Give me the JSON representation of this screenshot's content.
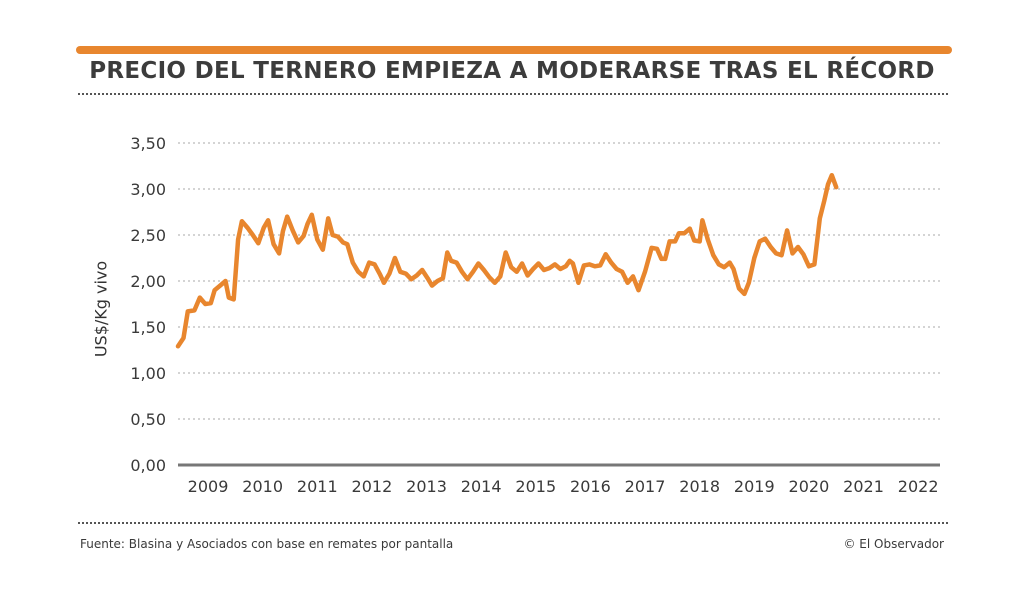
{
  "title": "PRECIO DEL TERNERO EMPIEZA A MODERARSE TRAS EL RÉCORD",
  "source": "Fuente: Blasina y Asociados con base en remates por pantalla",
  "credit": "© El Observador",
  "colors": {
    "accent": "#e8862e",
    "grid": "#bbbbbb",
    "axis": "#777777",
    "text": "#3a3a3a"
  },
  "chart_data": {
    "type": "line",
    "title": "PRECIO DEL TERNERO EMPIEZA A MODERARSE TRAS EL RÉCORD",
    "xlabel": "",
    "ylabel": "US$/Kg vivo",
    "ylim": [
      0,
      3.5
    ],
    "xlim": [
      2008.95,
      2022.9
    ],
    "grid": true,
    "yticks": [
      "0,00",
      "0,50",
      "1,00",
      "1,50",
      "2,00",
      "2,50",
      "3,00",
      "3,50"
    ],
    "ytick_values": [
      0,
      0.5,
      1.0,
      1.5,
      2.0,
      2.5,
      3.0,
      3.5
    ],
    "xticks": [
      "2009",
      "2010",
      "2011",
      "2012",
      "2013",
      "2014",
      "2015",
      "2016",
      "2017",
      "2018",
      "2019",
      "2020",
      "2021",
      "2022"
    ],
    "xtick_values": [
      2009.5,
      2010.5,
      2011.5,
      2012.5,
      2013.5,
      2014.5,
      2015.5,
      2016.5,
      2017.5,
      2018.5,
      2019.5,
      2020.5,
      2021.5,
      2022.5
    ],
    "series": [
      {
        "values": [
          [
            2008.95,
            1.29
          ],
          [
            2009.05,
            1.38
          ],
          [
            2009.13,
            1.67
          ],
          [
            2009.25,
            1.68
          ],
          [
            2009.35,
            1.82
          ],
          [
            2009.45,
            1.75
          ],
          [
            2009.55,
            1.76
          ],
          [
            2009.62,
            1.9
          ],
          [
            2009.72,
            1.95
          ],
          [
            2009.82,
            2.0
          ],
          [
            2009.88,
            1.82
          ],
          [
            2009.97,
            1.8
          ],
          [
            2010.05,
            2.45
          ],
          [
            2010.12,
            2.65
          ],
          [
            2010.22,
            2.58
          ],
          [
            2010.32,
            2.5
          ],
          [
            2010.42,
            2.41
          ],
          [
            2010.52,
            2.58
          ],
          [
            2010.6,
            2.66
          ],
          [
            2010.7,
            2.4
          ],
          [
            2010.8,
            2.3
          ],
          [
            2010.87,
            2.54
          ],
          [
            2010.95,
            2.7
          ],
          [
            2011.05,
            2.55
          ],
          [
            2011.15,
            2.42
          ],
          [
            2011.25,
            2.49
          ],
          [
            2011.32,
            2.62
          ],
          [
            2011.4,
            2.72
          ],
          [
            2011.5,
            2.45
          ],
          [
            2011.6,
            2.34
          ],
          [
            2011.7,
            2.68
          ],
          [
            2011.78,
            2.5
          ],
          [
            2011.88,
            2.48
          ],
          [
            2011.97,
            2.42
          ],
          [
            2012.05,
            2.4
          ],
          [
            2012.15,
            2.2
          ],
          [
            2012.25,
            2.1
          ],
          [
            2012.35,
            2.05
          ],
          [
            2012.45,
            2.2
          ],
          [
            2012.55,
            2.18
          ],
          [
            2012.65,
            2.07
          ],
          [
            2012.72,
            1.98
          ],
          [
            2012.82,
            2.08
          ],
          [
            2012.92,
            2.25
          ],
          [
            2013.02,
            2.1
          ],
          [
            2013.12,
            2.08
          ],
          [
            2013.22,
            2.02
          ],
          [
            2013.32,
            2.06
          ],
          [
            2013.42,
            2.12
          ],
          [
            2013.52,
            2.03
          ],
          [
            2013.6,
            1.95
          ],
          [
            2013.7,
            2.0
          ],
          [
            2013.8,
            2.03
          ],
          [
            2013.88,
            2.31
          ],
          [
            2013.95,
            2.22
          ],
          [
            2014.05,
            2.2
          ],
          [
            2014.15,
            2.1
          ],
          [
            2014.25,
            2.02
          ],
          [
            2014.35,
            2.1
          ],
          [
            2014.45,
            2.19
          ],
          [
            2014.55,
            2.12
          ],
          [
            2014.65,
            2.04
          ],
          [
            2014.75,
            1.98
          ],
          [
            2014.85,
            2.05
          ],
          [
            2014.95,
            2.31
          ],
          [
            2015.05,
            2.15
          ],
          [
            2015.15,
            2.1
          ],
          [
            2015.25,
            2.19
          ],
          [
            2015.35,
            2.06
          ],
          [
            2015.45,
            2.13
          ],
          [
            2015.55,
            2.19
          ],
          [
            2015.65,
            2.12
          ],
          [
            2015.75,
            2.14
          ],
          [
            2015.85,
            2.18
          ],
          [
            2015.95,
            2.13
          ],
          [
            2016.05,
            2.16
          ],
          [
            2016.12,
            2.22
          ],
          [
            2016.18,
            2.19
          ],
          [
            2016.28,
            1.98
          ],
          [
            2016.38,
            2.17
          ],
          [
            2016.48,
            2.18
          ],
          [
            2016.58,
            2.16
          ],
          [
            2016.68,
            2.17
          ],
          [
            2016.78,
            2.29
          ],
          [
            2016.88,
            2.2
          ],
          [
            2016.98,
            2.13
          ],
          [
            2017.08,
            2.1
          ],
          [
            2017.18,
            1.98
          ],
          [
            2017.28,
            2.05
          ],
          [
            2017.38,
            1.9
          ],
          [
            2017.5,
            2.1
          ],
          [
            2017.62,
            2.36
          ],
          [
            2017.72,
            2.35
          ],
          [
            2017.8,
            2.24
          ],
          [
            2017.87,
            2.24
          ],
          [
            2017.95,
            2.43
          ],
          [
            2018.05,
            2.43
          ],
          [
            2018.12,
            2.52
          ],
          [
            2018.22,
            2.52
          ],
          [
            2018.32,
            2.57
          ],
          [
            2018.4,
            2.44
          ],
          [
            2018.5,
            2.43
          ],
          [
            2018.55,
            2.66
          ],
          [
            2018.65,
            2.45
          ],
          [
            2018.75,
            2.28
          ],
          [
            2018.85,
            2.18
          ],
          [
            2018.95,
            2.15
          ],
          [
            2019.05,
            2.2
          ],
          [
            2019.12,
            2.13
          ],
          [
            2019.22,
            1.92
          ],
          [
            2019.32,
            1.86
          ],
          [
            2019.4,
            1.98
          ],
          [
            2019.5,
            2.25
          ],
          [
            2019.6,
            2.43
          ],
          [
            2019.7,
            2.46
          ],
          [
            2019.8,
            2.37
          ],
          [
            2019.9,
            2.3
          ],
          [
            2020.0,
            2.28
          ],
          [
            2020.1,
            2.55
          ],
          [
            2020.2,
            2.3
          ],
          [
            2020.3,
            2.37
          ],
          [
            2020.4,
            2.29
          ],
          [
            2020.5,
            2.16
          ],
          [
            2020.6,
            2.18
          ],
          [
            2020.7,
            2.68
          ],
          [
            2020.78,
            2.87
          ],
          [
            2020.85,
            3.05
          ],
          [
            2020.92,
            3.15
          ],
          [
            2021.0,
            3.02
          ]
        ]
      }
    ]
  }
}
